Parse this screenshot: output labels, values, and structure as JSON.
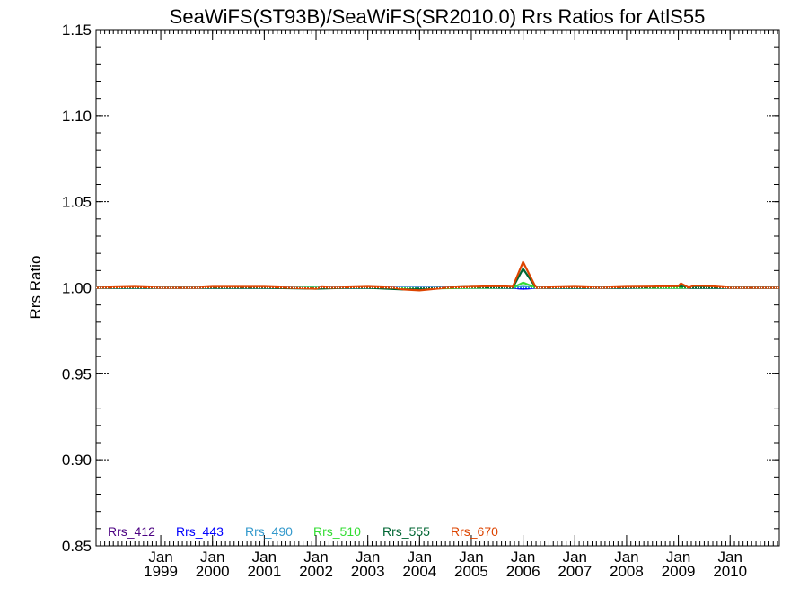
{
  "chart_data": {
    "type": "line",
    "title": "SeaWiFS(ST93B)/SeaWiFS(SR2010.0)  Rrs Ratios for AtlS55",
    "ylabel": "Rrs Ratio",
    "xlabel": "",
    "ylim": [
      0.85,
      1.15
    ],
    "xlim": [
      1997.75,
      2010.95
    ],
    "y_ticks": [
      "0.85",
      "0.90",
      "0.95",
      "1.00",
      "1.05",
      "1.10",
      "1.15"
    ],
    "y_tick_values": [
      0.85,
      0.9,
      0.95,
      1.0,
      1.05,
      1.1,
      1.15
    ],
    "x_ticks": [
      {
        "month": "Jan",
        "year": "1999",
        "value": 1999.0
      },
      {
        "month": "Jan",
        "year": "2000",
        "value": 2000.0
      },
      {
        "month": "Jan",
        "year": "2001",
        "value": 2001.0
      },
      {
        "month": "Jan",
        "year": "2002",
        "value": 2002.0
      },
      {
        "month": "Jan",
        "year": "2003",
        "value": 2003.0
      },
      {
        "month": "Jan",
        "year": "2004",
        "value": 2004.0
      },
      {
        "month": "Jan",
        "year": "2005",
        "value": 2005.0
      },
      {
        "month": "Jan",
        "year": "2006",
        "value": 2006.0
      },
      {
        "month": "Jan",
        "year": "2007",
        "value": 2007.0
      },
      {
        "month": "Jan",
        "year": "2008",
        "value": 2008.0
      },
      {
        "month": "Jan",
        "year": "2009",
        "value": 2009.0
      },
      {
        "month": "Jan",
        "year": "2010",
        "value": 2010.0
      }
    ],
    "reference_line": 1.0,
    "legend_position": "bottom-left",
    "series": [
      {
        "name": "Rrs_412",
        "color": "#4b0082",
        "x": [
          1997.75,
          1999.0,
          2000.0,
          2001.0,
          2002.0,
          2003.0,
          2004.0,
          2005.0,
          2005.8,
          2006.0,
          2006.25,
          2007.0,
          2008.0,
          2009.0,
          2010.0,
          2010.95
        ],
        "y": [
          1.0,
          1.0,
          1.0,
          1.0,
          1.0,
          1.0,
          1.0,
          1.0,
          1.0,
          0.9995,
          1.0,
          1.0,
          1.0,
          1.0,
          1.0,
          1.0
        ]
      },
      {
        "name": "Rrs_443",
        "color": "#0000ff",
        "x": [
          1997.75,
          1999.0,
          2000.0,
          2001.0,
          2002.0,
          2003.0,
          2004.0,
          2005.0,
          2005.8,
          2006.0,
          2006.25,
          2007.0,
          2008.0,
          2009.0,
          2010.0,
          2010.95
        ],
        "y": [
          1.0,
          1.0,
          1.0,
          1.0,
          1.0,
          1.0,
          1.0,
          1.0,
          1.0,
          0.9995,
          1.0,
          1.0,
          1.0,
          1.0,
          1.0,
          1.0
        ]
      },
      {
        "name": "Rrs_490",
        "color": "#3399cc",
        "x": [
          1997.75,
          1999.0,
          2000.0,
          2001.0,
          2002.0,
          2003.0,
          2004.0,
          2005.0,
          2005.8,
          2006.0,
          2006.25,
          2007.0,
          2008.0,
          2009.0,
          2010.0,
          2010.95
        ],
        "y": [
          1.0,
          1.0,
          1.0,
          1.0,
          1.0,
          1.0,
          1.0,
          1.0,
          1.0,
          1.0005,
          1.0,
          1.0,
          1.0,
          1.0,
          1.0,
          1.0
        ]
      },
      {
        "name": "Rrs_510",
        "color": "#33dd33",
        "x": [
          1997.75,
          1999.0,
          2000.0,
          2001.0,
          2002.0,
          2003.0,
          2004.0,
          2005.0,
          2005.8,
          2006.0,
          2006.25,
          2007.0,
          2008.0,
          2009.0,
          2010.0,
          2010.95
        ],
        "y": [
          1.0,
          1.0,
          1.0,
          1.0,
          1.0,
          1.0,
          0.9995,
          1.0,
          1.0,
          1.003,
          1.0,
          1.0,
          1.0,
          1.0,
          1.0,
          1.0
        ]
      },
      {
        "name": "Rrs_555",
        "color": "#006633",
        "x": [
          1997.75,
          1999.0,
          2000.0,
          2001.0,
          2002.0,
          2002.6,
          2003.0,
          2003.7,
          2004.0,
          2005.0,
          2005.8,
          2006.0,
          2006.25,
          2007.0,
          2008.0,
          2009.0,
          2009.25,
          2010.0,
          2010.95
        ],
        "y": [
          1.0,
          1.0,
          1.0,
          1.0,
          0.9995,
          1.0,
          1.0,
          0.999,
          0.9995,
          1.0005,
          1.0,
          1.011,
          1.0,
          1.0,
          1.0,
          1.001,
          1.0,
          1.0,
          1.0
        ]
      },
      {
        "name": "Rrs_670",
        "color": "#dd4400",
        "x": [
          1997.75,
          1998.5,
          1999.0,
          1999.7,
          2000.0,
          2001.0,
          2001.5,
          2002.0,
          2002.1,
          2002.3,
          2003.0,
          2003.5,
          2003.7,
          2004.0,
          2004.5,
          2005.0,
          2005.5,
          2005.8,
          2006.0,
          2006.25,
          2007.0,
          2007.5,
          2008.0,
          2008.5,
          2009.0,
          2009.05,
          2009.2,
          2009.3,
          2009.6,
          2010.0,
          2010.95
        ],
        "y": [
          1.0,
          1.0005,
          1.0,
          1.0,
          1.0005,
          1.0005,
          1.0,
          0.9995,
          1.0003,
          1.0,
          1.0005,
          1.0,
          0.999,
          0.9985,
          1.0,
          1.0005,
          1.001,
          1.0005,
          1.015,
          1.0,
          1.0005,
          1.0,
          1.0005,
          1.0007,
          1.001,
          1.0025,
          1.0,
          1.0012,
          1.001,
          1.0,
          1.0
        ]
      }
    ]
  }
}
